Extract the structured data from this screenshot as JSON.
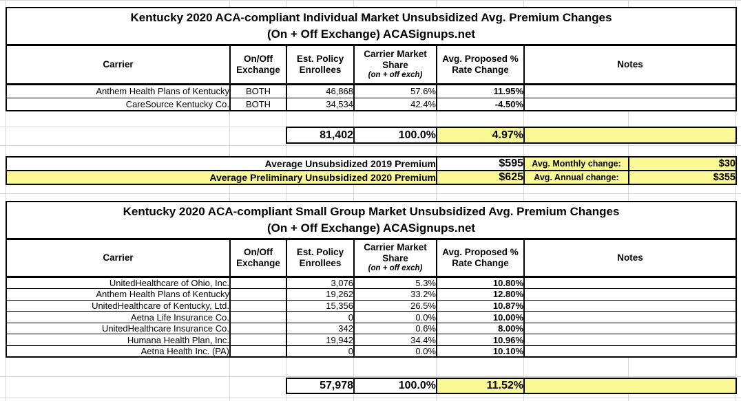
{
  "colors": {
    "highlight": "#fbf896",
    "grid_line": "#d6d6d6",
    "border": "#000000"
  },
  "individual_table": {
    "title_line1": "Kentucky 2020 ACA-compliant Individual Market Unsubsidized Avg. Premium Changes",
    "title_line2": "(On + Off Exchange) ACASignups.net",
    "headers": {
      "carrier": "Carrier",
      "exchange": "On/Off Exchange",
      "enrollees": "Est. Policy Enrollees",
      "share": "Carrier Market Share",
      "share_sub": "(on + off exch)",
      "rate": "Avg. Proposed % Rate Change",
      "notes": "Notes"
    },
    "rows": [
      {
        "carrier": "Anthem Health Plans of Kentucky",
        "exchange": "BOTH",
        "enrollees": "46,868",
        "share": "57.6%",
        "rate": "11.95%",
        "notes": ""
      },
      {
        "carrier": "CareSource Kentucky Co.",
        "exchange": "BOTH",
        "enrollees": "34,534",
        "share": "42.4%",
        "rate": "-4.50%",
        "notes": ""
      }
    ],
    "total": {
      "enrollees": "81,402",
      "share": "100.0%",
      "rate": "4.97%",
      "notes": ""
    }
  },
  "premium_summary": {
    "row_2019": {
      "label": "Average Unsubsidized 2019 Premium",
      "value": "$595",
      "change_label": "Avg. Monthly change:",
      "change_value": "$30"
    },
    "row_2020": {
      "label": "Average Preliminary Unsubsidized 2020 Premium",
      "value": "$625",
      "change_label": "Avg. Annual change:",
      "change_value": "$355"
    }
  },
  "small_group_table": {
    "title_line1": "Kentucky 2020 ACA-compliant Small Group Market Unsubsidized Avg. Premium Changes",
    "title_line2": "(On + Off Exchange) ACASignups.net",
    "headers": {
      "carrier": "Carrier",
      "exchange": "On/Off Exchange",
      "enrollees": "Est. Policy Enrollees",
      "share": "Carrier Market Share",
      "share_sub": "(on + off exch)",
      "rate": "Avg. Proposed % Rate Change",
      "notes": "Notes"
    },
    "rows": [
      {
        "carrier": "UnitedHealthcare of Ohio, Inc.",
        "exchange": "",
        "enrollees": "3,076",
        "share": "5.3%",
        "rate": "10.80%",
        "notes": ""
      },
      {
        "carrier": "Anthem Health Plans of Kentucky",
        "exchange": "",
        "enrollees": "19,262",
        "share": "33.2%",
        "rate": "12.80%",
        "notes": ""
      },
      {
        "carrier": "UnitedHealthcare of Kentucky, Ltd.",
        "exchange": "",
        "enrollees": "15,356",
        "share": "26.5%",
        "rate": "10.87%",
        "notes": ""
      },
      {
        "carrier": "Aetna Life Insurance Co.",
        "exchange": "",
        "enrollees": "0",
        "share": "0.0%",
        "rate": "10.00%",
        "notes": ""
      },
      {
        "carrier": "UnitedHealthcare Insurance Co.",
        "exchange": "",
        "enrollees": "342",
        "share": "0.6%",
        "rate": "8.00%",
        "notes": ""
      },
      {
        "carrier": "Humana Health Plan, Inc.",
        "exchange": "",
        "enrollees": "19,942",
        "share": "34.4%",
        "rate": "10.96%",
        "notes": ""
      },
      {
        "carrier": "Aetna Health Inc. (PA)",
        "exchange": "",
        "enrollees": "0",
        "share": "0.0%",
        "rate": "10.10%",
        "notes": ""
      }
    ],
    "total": {
      "enrollees": "57,978",
      "share": "100.0%",
      "rate": "11.52%",
      "notes": ""
    }
  }
}
